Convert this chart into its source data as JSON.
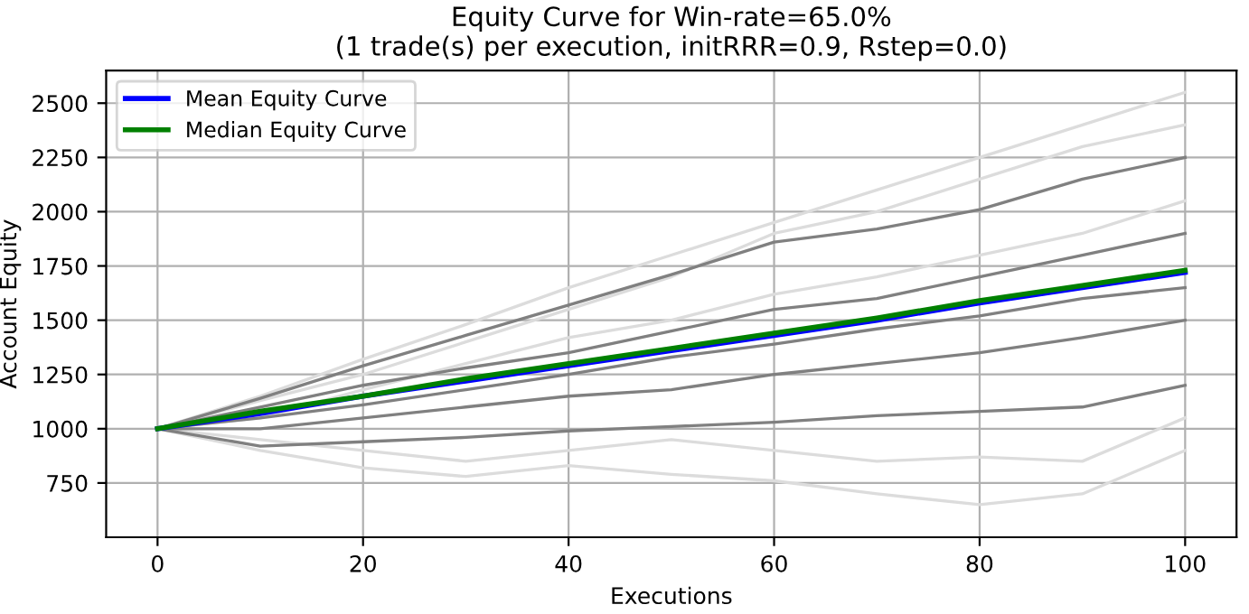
{
  "chart_data": {
    "type": "line",
    "title": "Equity Curve for Win-rate=65.0%\n(1 trade(s) per execution, initRRR=0.9, Rstep=0.0)",
    "xlabel": "Executions",
    "ylabel": "Account Equity",
    "x": [
      0,
      10,
      20,
      30,
      40,
      50,
      60,
      70,
      80,
      90,
      100
    ],
    "xlim": [
      -5,
      105
    ],
    "xticks": [
      0,
      20,
      40,
      60,
      80,
      100
    ],
    "ylim": [
      500,
      2650
    ],
    "yticks": [
      750,
      1000,
      1250,
      1500,
      1750,
      2000,
      2250,
      2500
    ],
    "grid": true,
    "legend": "top left",
    "marker": "none",
    "line_style": "solid",
    "series": [
      {
        "color": "#dcdcdc",
        "values": [
          1000,
          1150,
          1320,
          1480,
          1650,
          1800,
          1950,
          2100,
          2250,
          2400,
          2550
        ]
      },
      {
        "color": "#dcdcdc",
        "values": [
          1000,
          1130,
          1250,
          1400,
          1550,
          1700,
          1900,
          2000,
          2150,
          2300,
          2400
        ]
      },
      {
        "color": "#dcdcdc",
        "values": [
          1000,
          900,
          820,
          780,
          830,
          790,
          760,
          700,
          650,
          700,
          900
        ]
      },
      {
        "color": "#dcdcdc",
        "values": [
          1000,
          950,
          900,
          850,
          900,
          950,
          900,
          850,
          870,
          850,
          1050
        ]
      },
      {
        "color": "#dcdcdc",
        "values": [
          1000,
          1050,
          1180,
          1300,
          1420,
          1500,
          1620,
          1700,
          1800,
          1900,
          2050
        ]
      },
      {
        "color": "#808080",
        "values": [
          1000,
          1140,
          1290,
          1430,
          1570,
          1710,
          1860,
          1920,
          2010,
          2150,
          2250
        ]
      },
      {
        "color": "#808080",
        "values": [
          1000,
          1050,
          1110,
          1180,
          1250,
          1330,
          1390,
          1460,
          1520,
          1600,
          1650
        ]
      },
      {
        "color": "#808080",
        "values": [
          1000,
          920,
          940,
          960,
          990,
          1010,
          1030,
          1060,
          1080,
          1100,
          1200
        ]
      },
      {
        "color": "#808080",
        "values": [
          1000,
          1000,
          1050,
          1100,
          1150,
          1180,
          1250,
          1300,
          1350,
          1420,
          1500
        ]
      },
      {
        "color": "#808080",
        "values": [
          1000,
          1100,
          1200,
          1280,
          1350,
          1450,
          1550,
          1600,
          1700,
          1800,
          1900
        ]
      },
      {
        "name": "Mean Equity Curve",
        "color": "#0000ff",
        "values": [
          1000,
          1070,
          1150,
          1220,
          1290,
          1360,
          1430,
          1500,
          1580,
          1650,
          1720
        ]
      },
      {
        "name": "Median Equity Curve",
        "color": "#008000",
        "values": [
          1000,
          1080,
          1150,
          1230,
          1300,
          1370,
          1440,
          1510,
          1590,
          1660,
          1730
        ]
      }
    ]
  }
}
